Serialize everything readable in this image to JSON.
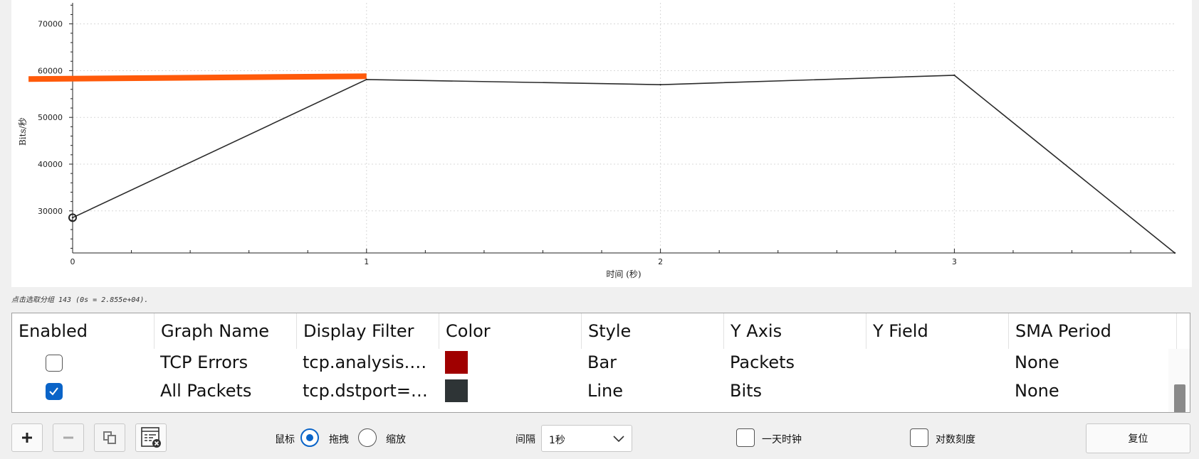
{
  "chart_data": {
    "type": "line",
    "title": "",
    "xlabel": "时间 (秒)",
    "ylabel": "Bits/秒",
    "xlim": [
      0,
      3.75
    ],
    "ylim": [
      21000,
      74500
    ],
    "x_ticks": [
      0,
      1,
      2,
      3
    ],
    "y_ticks": [
      30000,
      40000,
      50000,
      60000,
      70000
    ],
    "grid": true,
    "series": [
      {
        "color": "#2b2b2b",
        "x": [
          0,
          1,
          2,
          3,
          3.75
        ],
        "y": [
          28550,
          58100,
          57000,
          59000,
          21000
        ]
      }
    ],
    "markers": [
      {
        "type": "circle",
        "x": 0,
        "y": 28550
      }
    ],
    "bars": [
      {
        "color": "#ff5a0a",
        "x_start": -0.15,
        "x_end": 1,
        "y": 58500
      }
    ]
  },
  "status": {
    "text": "点击选取分组 143 (0s = 2.855e+04)."
  },
  "table": {
    "headers": [
      "Enabled",
      "Graph Name",
      "Display Filter",
      "Color",
      "Style",
      "Y Axis",
      "Y Field",
      "SMA Period"
    ],
    "rows": [
      {
        "enabled": false,
        "name": "TCP Errors",
        "filter": "tcp.analysis.fla...",
        "color": "#a00000",
        "style": "Bar",
        "y_axis": "Packets",
        "y_field": "",
        "sma": "None"
      },
      {
        "enabled": true,
        "name": "All Packets",
        "filter": "tcp.dstport==...",
        "color": "#2e3436",
        "style": "Line",
        "y_axis": "Bits",
        "y_field": "",
        "sma": "None"
      }
    ]
  },
  "toolbar": {
    "add_icon": "plus-icon",
    "remove_icon": "minus-icon",
    "copy_icon": "copy-icon",
    "clear_icon": "clear-list-icon"
  },
  "mouse": {
    "label": "鼠标",
    "drag_label": "拖拽",
    "zoom_label": "缩放",
    "selected": "drag"
  },
  "interval": {
    "label": "间隔",
    "value": "1秒"
  },
  "time_of_day": {
    "label": "一天时钟",
    "checked": false
  },
  "log_scale": {
    "label": "对数刻度",
    "checked": false
  },
  "reset_label": "复位"
}
